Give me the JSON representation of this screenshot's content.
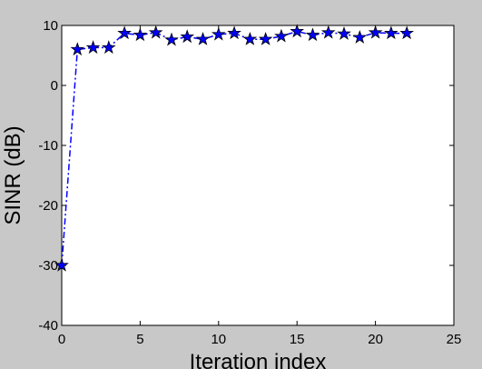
{
  "chart_data": {
    "type": "line",
    "title": "",
    "xlabel": "Iteration index",
    "ylabel": "SINR (dB)",
    "xlim": [
      0,
      25
    ],
    "ylim": [
      -40,
      10
    ],
    "xticks": [
      0,
      5,
      10,
      15,
      20,
      25
    ],
    "yticks": [
      -40,
      -30,
      -20,
      -10,
      0,
      10
    ],
    "grid": false,
    "legend": "none",
    "series": [
      {
        "color": "#0000ff",
        "line_style": "dash-dot",
        "marker": "star",
        "x": [
          0,
          1,
          2,
          3,
          4,
          5,
          6,
          7,
          8,
          9,
          10,
          11,
          12,
          13,
          14,
          15,
          16,
          17,
          18,
          19,
          20,
          21,
          22
        ],
        "y": [
          -30,
          6,
          6.3,
          6.3,
          8.7,
          8.4,
          8.8,
          7.6,
          8.1,
          7.7,
          8.5,
          8.7,
          7.7,
          7.7,
          8.2,
          9,
          8.4,
          8.8,
          8.6,
          8,
          8.8,
          8.7,
          8.7
        ]
      }
    ]
  }
}
